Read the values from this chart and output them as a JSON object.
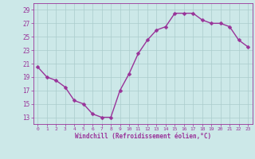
{
  "x": [
    0,
    1,
    2,
    3,
    4,
    5,
    6,
    7,
    8,
    9,
    10,
    11,
    12,
    13,
    14,
    15,
    16,
    17,
    18,
    19,
    20,
    21,
    22,
    23
  ],
  "y": [
    20.5,
    19,
    18.5,
    17.5,
    15.5,
    15,
    13.5,
    13,
    13,
    17,
    19.5,
    22.5,
    24.5,
    26,
    26.5,
    28.5,
    28.5,
    28.5,
    27.5,
    27,
    27,
    26.5,
    24.5,
    23.5
  ],
  "line_color": "#993399",
  "marker_color": "#993399",
  "bg_color": "#cce8e8",
  "grid_color": "#aacccc",
  "title": "",
  "xlabel": "Windchill (Refroidissement éolien,°C)",
  "xlim": [
    -0.5,
    23.5
  ],
  "ylim": [
    12,
    30
  ],
  "yticks": [
    13,
    15,
    17,
    19,
    21,
    23,
    25,
    27,
    29
  ],
  "xtick_labels": [
    "0",
    "1",
    "2",
    "3",
    "4",
    "5",
    "6",
    "7",
    "8",
    "9",
    "10",
    "11",
    "12",
    "13",
    "14",
    "15",
    "16",
    "17",
    "18",
    "19",
    "20",
    "21",
    "22",
    "23"
  ],
  "tick_color": "#993399",
  "label_color": "#993399",
  "marker_size": 2.5,
  "line_width": 1.0
}
